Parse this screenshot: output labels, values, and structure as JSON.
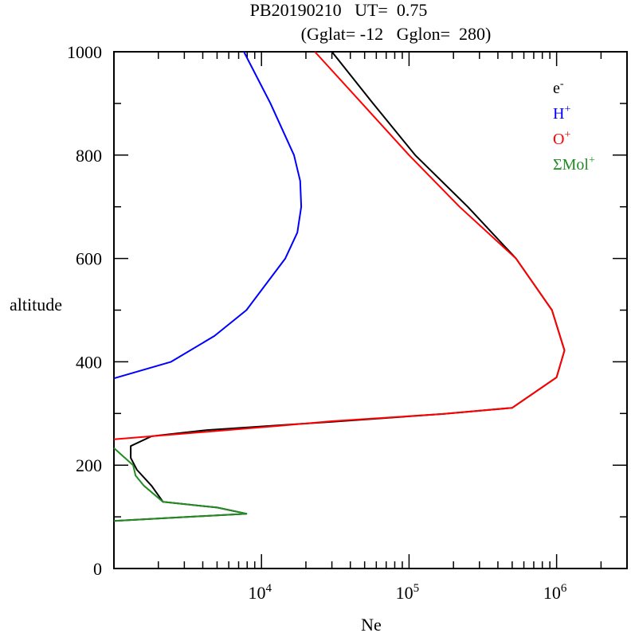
{
  "chart_data": {
    "type": "line",
    "title_line1": "PB20190210   UT=  0.75",
    "title_line2": "(Gglat= -12   Gglon=  280)",
    "xlabel": "Ne",
    "ylabel": "altitude",
    "xscale": "log",
    "xlim": [
      1000,
      3000000
    ],
    "ylim": [
      0,
      1000
    ],
    "yticks": [
      0,
      200,
      400,
      600,
      800,
      1000
    ],
    "xticks": [
      {
        "base": "10",
        "exp": "4",
        "value": 10000
      },
      {
        "base": "10",
        "exp": "5",
        "value": 100000
      },
      {
        "base": "10",
        "exp": "6",
        "value": 1000000
      }
    ],
    "legend_position": "top-right",
    "series": [
      {
        "name": "e",
        "sup": "-",
        "color": "#000000",
        "points": [
          [
            30000,
            1000
          ],
          [
            57000,
            900
          ],
          [
            110000,
            800
          ],
          [
            250000,
            700
          ],
          [
            530000,
            600
          ],
          [
            930000,
            500
          ],
          [
            1130000,
            422
          ],
          [
            1000000,
            370
          ],
          [
            500000,
            311
          ],
          [
            170000,
            299
          ],
          [
            30000,
            284
          ],
          [
            4300,
            268
          ],
          [
            1800,
            256
          ],
          [
            1300,
            237
          ],
          [
            1300,
            214
          ],
          [
            1430,
            191
          ],
          [
            1800,
            160
          ],
          [
            2150,
            129
          ],
          [
            5000,
            118
          ],
          [
            7900,
            106
          ],
          [
            1000,
            92
          ]
        ]
      },
      {
        "name": "H",
        "sup": "+",
        "color": "#0000ff",
        "points": [
          [
            7600,
            1000
          ],
          [
            11500,
            900
          ],
          [
            16600,
            800
          ],
          [
            18300,
            750
          ],
          [
            18600,
            700
          ],
          [
            17500,
            650
          ],
          [
            14500,
            600
          ],
          [
            7900,
            500
          ],
          [
            4800,
            450
          ],
          [
            2440,
            400
          ],
          [
            1000,
            368
          ]
        ]
      },
      {
        "name": "O",
        "sup": "+",
        "color": "#ff0000",
        "points": [
          [
            23000,
            1000
          ],
          [
            48000,
            900
          ],
          [
            100000,
            800
          ],
          [
            220000,
            700
          ],
          [
            530000,
            600
          ],
          [
            930000,
            500
          ],
          [
            1130000,
            422
          ],
          [
            1000000,
            370
          ],
          [
            500000,
            311
          ],
          [
            170000,
            299
          ],
          [
            30000,
            285
          ],
          [
            13000,
            276
          ],
          [
            1000,
            250
          ]
        ]
      },
      {
        "name": "ΣMol",
        "sup": "+",
        "color": "#228b22",
        "points": [
          [
            1000,
            233
          ],
          [
            1350,
            200
          ],
          [
            1400,
            180
          ],
          [
            1600,
            160
          ],
          [
            2150,
            129
          ],
          [
            5000,
            118
          ],
          [
            7900,
            106
          ],
          [
            1000,
            92
          ]
        ]
      }
    ]
  }
}
